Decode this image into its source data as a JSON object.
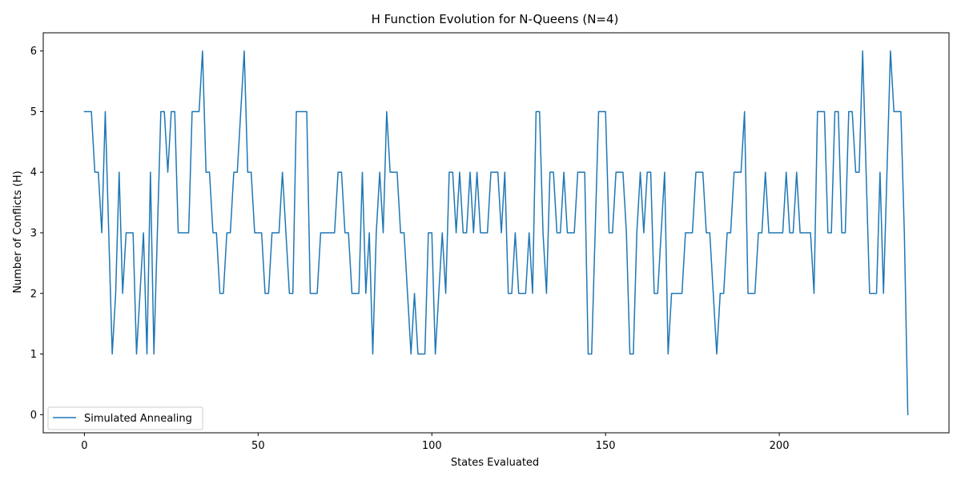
{
  "chart_data": {
    "type": "line",
    "title": "H Function Evolution for N-Queens (N=4)",
    "xlabel": "States Evaluated",
    "ylabel": "Number of Conflicts (H)",
    "xlim": [
      -11.85,
      248.85
    ],
    "ylim": [
      -0.3,
      6.3
    ],
    "xticks": [
      0,
      50,
      100,
      150,
      200
    ],
    "yticks": [
      0,
      1,
      2,
      3,
      4,
      5,
      6
    ],
    "legend_location": "lower-left",
    "grid": false,
    "series": [
      {
        "name": "Simulated Annealing",
        "color": "#1f77b4",
        "values": [
          5,
          5,
          5,
          4,
          4,
          3,
          5,
          3,
          1,
          2,
          4,
          2,
          3,
          3,
          3,
          1,
          2,
          3,
          1,
          4,
          1,
          3,
          5,
          5,
          4,
          5,
          5,
          3,
          3,
          3,
          3,
          5,
          5,
          5,
          6,
          4,
          4,
          3,
          3,
          2,
          2,
          3,
          3,
          4,
          4,
          5,
          6,
          4,
          4,
          3,
          3,
          3,
          2,
          2,
          3,
          3,
          3,
          4,
          3,
          2,
          2,
          5,
          5,
          5,
          5,
          2,
          2,
          2,
          3,
          3,
          3,
          3,
          3,
          4,
          4,
          3,
          3,
          2,
          2,
          2,
          4,
          2,
          3,
          1,
          3,
          4,
          3,
          5,
          4,
          4,
          4,
          3,
          3,
          2,
          1,
          2,
          1,
          1,
          1,
          3,
          3,
          1,
          2,
          3,
          2,
          4,
          4,
          3,
          4,
          3,
          3,
          4,
          3,
          4,
          3,
          3,
          3,
          4,
          4,
          4,
          3,
          4,
          2,
          2,
          3,
          2,
          2,
          2,
          3,
          2,
          5,
          5,
          3,
          2,
          4,
          4,
          3,
          3,
          4,
          3,
          3,
          3,
          4,
          4,
          4,
          1,
          1,
          3,
          5,
          5,
          5,
          3,
          3,
          4,
          4,
          4,
          3,
          1,
          1,
          3,
          4,
          3,
          4,
          4,
          2,
          2,
          3,
          4,
          1,
          2,
          2,
          2,
          2,
          3,
          3,
          3,
          4,
          4,
          4,
          3,
          3,
          2,
          1,
          2,
          2,
          3,
          3,
          4,
          4,
          4,
          5,
          2,
          2,
          2,
          3,
          3,
          4,
          3,
          3,
          3,
          3,
          3,
          4,
          3,
          3,
          4,
          3,
          3,
          3,
          3,
          2,
          5,
          5,
          5,
          3,
          3,
          5,
          5,
          3,
          3,
          5,
          5,
          4,
          4,
          6,
          4,
          2,
          2,
          2,
          4,
          2,
          4,
          6,
          5,
          5,
          5,
          3,
          0
        ]
      }
    ]
  }
}
